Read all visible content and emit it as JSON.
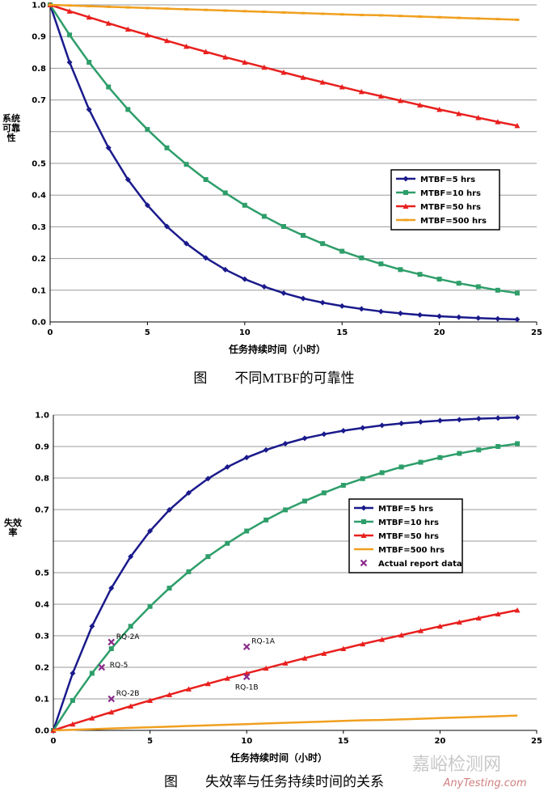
{
  "chart_data": [
    {
      "type": "line",
      "ylabel": "系统可靠性",
      "xlabel": "任务持续时间（小时）",
      "caption": "图　　不同MTBF的可靠性",
      "xlim": [
        0,
        25
      ],
      "xticks": [
        0,
        5,
        10,
        15,
        20,
        25
      ],
      "ylim": [
        0,
        1
      ],
      "yticks": [
        {
          "value": 0,
          "label": "0.0"
        },
        0.1,
        0.2,
        0.3,
        0.4,
        0.5,
        0.7,
        0.8,
        0.9,
        {
          "value": 1,
          "label": "1.0"
        }
      ],
      "unlabeled_yticks": [
        0.6
      ],
      "grid": true,
      "x": [
        0,
        1,
        2,
        3,
        4,
        5,
        6,
        7,
        8,
        9,
        10,
        11,
        12,
        13,
        14,
        15,
        16,
        17,
        18,
        19,
        20,
        21,
        22,
        23,
        24
      ],
      "series": [
        {
          "name": "MTBF=5 hrs",
          "color": "#1a1a8c",
          "marker": "diamond",
          "values": [
            1,
            0.819,
            0.67,
            0.549,
            0.449,
            0.368,
            0.301,
            0.247,
            0.202,
            0.165,
            0.135,
            0.111,
            0.091,
            0.074,
            0.061,
            0.05,
            0.041,
            0.033,
            0.027,
            0.022,
            0.018,
            0.015,
            0.012,
            0.01,
            0.008
          ]
        },
        {
          "name": "MTBF=10 hrs",
          "color": "#2e9e6a",
          "marker": "square",
          "values": [
            1,
            0.905,
            0.819,
            0.741,
            0.67,
            0.607,
            0.549,
            0.497,
            0.449,
            0.407,
            0.368,
            0.333,
            0.301,
            0.273,
            0.247,
            0.223,
            0.202,
            0.183,
            0.165,
            0.15,
            0.135,
            0.122,
            0.111,
            0.1,
            0.091
          ]
        },
        {
          "name": "MTBF=50 hrs",
          "color": "#e8201e",
          "marker": "triangle",
          "values": [
            1,
            0.98,
            0.961,
            0.942,
            0.923,
            0.905,
            0.887,
            0.869,
            0.852,
            0.835,
            0.819,
            0.803,
            0.787,
            0.771,
            0.756,
            0.741,
            0.726,
            0.712,
            0.698,
            0.684,
            0.67,
            0.657,
            0.644,
            0.631,
            0.619
          ]
        },
        {
          "name": "MTBF=500 hrs",
          "color": "#f0a020",
          "marker": "dash",
          "values": [
            1,
            0.998,
            0.996,
            0.994,
            0.992,
            0.99,
            0.988,
            0.986,
            0.984,
            0.982,
            0.98,
            0.978,
            0.976,
            0.974,
            0.972,
            0.97,
            0.968,
            0.967,
            0.965,
            0.963,
            0.961,
            0.959,
            0.957,
            0.955,
            0.953
          ]
        }
      ]
    },
    {
      "type": "line",
      "ylabel": "失效率",
      "xlabel": "任务持续时间（小时）",
      "caption": "图　　失效率与任务持续时间的关系",
      "xlim": [
        0,
        25
      ],
      "xticks": [
        0,
        5,
        10,
        15,
        20,
        25
      ],
      "ylim": [
        0,
        1
      ],
      "yticks": [
        {
          "value": 0,
          "label": "0.0"
        },
        0.1,
        0.2,
        0.3,
        0.4,
        0.5,
        0.7,
        0.8,
        0.9,
        {
          "value": 1,
          "label": "1.0"
        }
      ],
      "unlabeled_yticks": [
        0.6
      ],
      "grid": true,
      "x": [
        0,
        1,
        2,
        3,
        4,
        5,
        6,
        7,
        8,
        9,
        10,
        11,
        12,
        13,
        14,
        15,
        16,
        17,
        18,
        19,
        20,
        21,
        22,
        23,
        24
      ],
      "series": [
        {
          "name": "MTBF=5 hrs",
          "color": "#1a1a8c",
          "marker": "diamond",
          "values": [
            0,
            0.181,
            0.33,
            0.451,
            0.551,
            0.632,
            0.699,
            0.753,
            0.798,
            0.835,
            0.865,
            0.889,
            0.909,
            0.926,
            0.939,
            0.95,
            0.959,
            0.967,
            0.973,
            0.978,
            0.982,
            0.985,
            0.988,
            0.99,
            0.992
          ]
        },
        {
          "name": "MTBF=10 hrs",
          "color": "#2e9e6a",
          "marker": "square",
          "values": [
            0,
            0.095,
            0.181,
            0.259,
            0.33,
            0.393,
            0.451,
            0.503,
            0.551,
            0.593,
            0.632,
            0.667,
            0.699,
            0.727,
            0.753,
            0.777,
            0.798,
            0.817,
            0.835,
            0.85,
            0.865,
            0.878,
            0.889,
            0.9,
            0.909
          ]
        },
        {
          "name": "MTBF=50 hrs",
          "color": "#e8201e",
          "marker": "triangle",
          "values": [
            0,
            0.02,
            0.039,
            0.058,
            0.077,
            0.095,
            0.113,
            0.131,
            0.148,
            0.165,
            0.181,
            0.197,
            0.213,
            0.229,
            0.244,
            0.259,
            0.274,
            0.288,
            0.302,
            0.316,
            0.33,
            0.343,
            0.356,
            0.369,
            0.381
          ]
        },
        {
          "name": "MTBF=500 hrs",
          "color": "#f0a020",
          "marker": "none",
          "values": [
            0,
            0.002,
            0.004,
            0.006,
            0.008,
            0.01,
            0.012,
            0.014,
            0.016,
            0.018,
            0.02,
            0.022,
            0.024,
            0.026,
            0.028,
            0.03,
            0.032,
            0.033,
            0.035,
            0.037,
            0.039,
            0.041,
            0.043,
            0.045,
            0.047
          ]
        },
        {
          "name": "Actual report data",
          "color": "#8b2a8b",
          "marker": "x",
          "scatter": true,
          "x": [
            3,
            2.5,
            3,
            10,
            10
          ],
          "values": [
            0.28,
            0.2,
            0.1,
            0.265,
            0.17
          ],
          "point_labels": [
            "RQ-2A",
            "RQ-5",
            "RQ-2B",
            "RQ-1A",
            "RQ-1B"
          ]
        }
      ]
    }
  ],
  "watermark": [
    "嘉峪检测网",
    "AnyTesting.com"
  ]
}
